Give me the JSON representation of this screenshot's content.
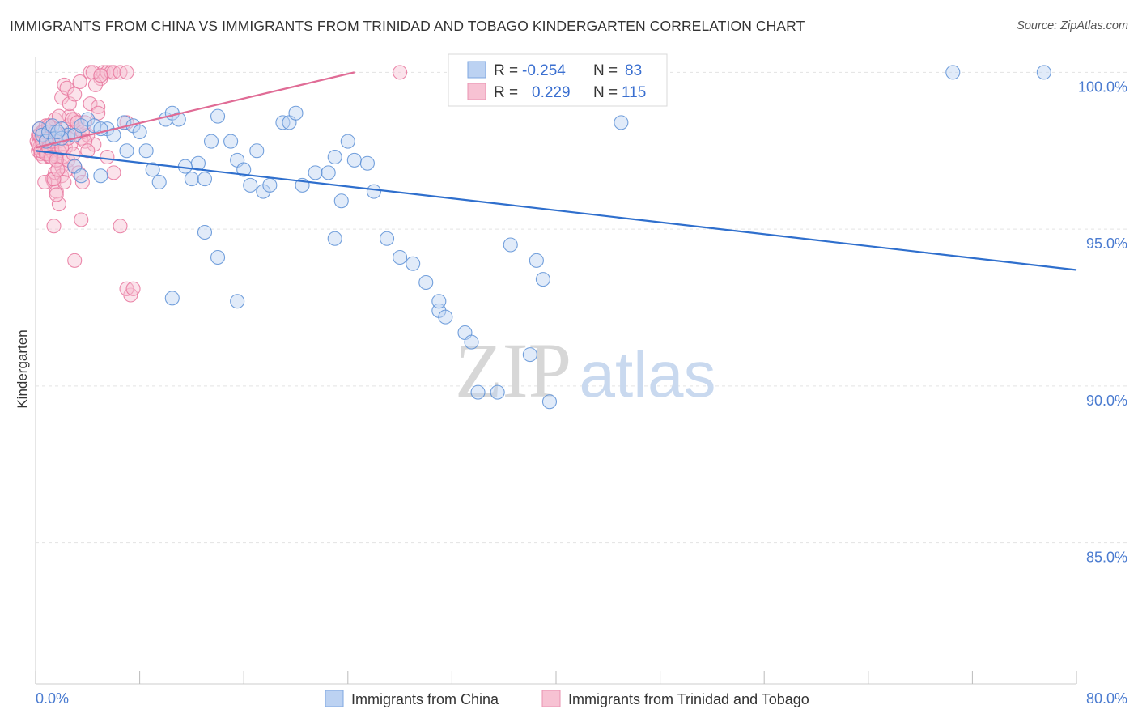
{
  "title": "IMMIGRANTS FROM CHINA VS IMMIGRANTS FROM TRINIDAD AND TOBAGO KINDERGARTEN CORRELATION CHART",
  "source": "Source: ZipAtlas.com",
  "watermark": {
    "left": "ZIP",
    "right": "atlas"
  },
  "legend_box": {
    "rows": [
      {
        "r_label": "R =",
        "r_value": "-0.254",
        "n_label": "N =",
        "n_value": "83",
        "color": "#a8c4ec"
      },
      {
        "r_label": "R =",
        "r_value": "0.229",
        "n_label": "N =",
        "n_value": "115",
        "color": "#f5b3c8"
      }
    ]
  },
  "bottom_legend": [
    {
      "label": "Immigrants from China",
      "color": "#a8c4ec"
    },
    {
      "label": "Immigrants from Trinidad and Tobago",
      "color": "#f5b3c8"
    }
  ],
  "colors": {
    "china": "#5b8fd6",
    "china_fill": "#bcd2f2",
    "tt": "#e8749c",
    "tt_fill": "#f7c2d3",
    "china_line": "#2f6fcd",
    "tt_line": "#e06c96",
    "tick": "#4a7bd0"
  },
  "chart_data": {
    "type": "scatter",
    "title": "IMMIGRANTS FROM CHINA VS IMMIGRANTS FROM TRINIDAD AND TOBAGO KINDERGARTEN CORRELATION CHART",
    "xlabel": "",
    "ylabel": "Kindergarten",
    "xlim": [
      0,
      80
    ],
    "ylim": [
      80.5,
      100.5
    ],
    "x_tick_labels": [
      "0.0%",
      "80.0%"
    ],
    "y_ticks": [
      85,
      90,
      95,
      100
    ],
    "y_tick_labels": [
      "85.0%",
      "90.0%",
      "95.0%",
      "100.0%"
    ],
    "grid": "horizontal dashed",
    "series": [
      {
        "name": "Immigrants from China",
        "R": -0.254,
        "N": 83,
        "trend": {
          "x": [
            0,
            80
          ],
          "y": [
            97.5,
            93.7
          ]
        },
        "x": [
          0.3,
          0.5,
          0.8,
          1.0,
          1.3,
          1.5,
          2.0,
          2.5,
          3.0,
          3.5,
          4.0,
          4.5,
          5.0,
          5.5,
          6.0,
          6.8,
          7.5,
          8.0,
          8.5,
          9.0,
          9.5,
          10.0,
          10.5,
          11.0,
          11.5,
          12.0,
          12.5,
          13.0,
          13.5,
          14.0,
          15.0,
          15.5,
          16.0,
          16.5,
          17.0,
          17.5,
          18.0,
          19.0,
          19.5,
          20.0,
          20.5,
          21.5,
          22.5,
          23.0,
          23.5,
          24.0,
          24.5,
          25.5,
          26.0,
          27.0,
          28.0,
          29.0,
          30.0,
          31.0,
          31.5,
          33.0,
          33.5,
          34.0,
          35.5,
          36.5,
          38.0,
          38.5,
          39.0,
          39.5,
          40.0,
          45.0,
          40.3,
          41.0,
          36.0,
          15.5,
          23.0,
          14.0,
          10.5,
          13.0,
          3.0,
          5.0,
          2.0,
          1.7,
          3.5,
          7.0,
          70.5,
          77.5,
          31.0
        ],
        "y": [
          98.2,
          98.0,
          97.8,
          98.1,
          98.3,
          97.9,
          98.2,
          98.0,
          97.0,
          96.7,
          98.5,
          98.3,
          96.7,
          98.2,
          98.0,
          98.4,
          98.3,
          98.1,
          97.5,
          96.9,
          96.5,
          98.5,
          98.7,
          98.5,
          97.0,
          96.6,
          97.1,
          96.6,
          97.8,
          98.6,
          97.8,
          97.2,
          96.9,
          96.4,
          97.5,
          96.2,
          96.4,
          98.4,
          98.4,
          98.7,
          96.4,
          96.8,
          96.8,
          97.3,
          95.9,
          97.8,
          97.2,
          97.1,
          96.2,
          94.7,
          94.1,
          93.9,
          93.3,
          92.4,
          92.2,
          91.7,
          91.4,
          89.8,
          89.8,
          94.5,
          91.0,
          94.0,
          93.4,
          89.5,
          100.0,
          98.4,
          100.0,
          100.0,
          100.0,
          92.7,
          94.7,
          94.1,
          92.8,
          94.9,
          98.0,
          98.2,
          97.9,
          98.1,
          98.3,
          97.5,
          100.0,
          100.0,
          92.7
        ]
      },
      {
        "name": "Immigrants from Trinidad and Tobago",
        "R": 0.229,
        "N": 115,
        "trend": {
          "x": [
            0,
            24.5
          ],
          "y": [
            97.6,
            100.0
          ]
        },
        "x": [
          0.1,
          0.2,
          0.2,
          0.3,
          0.3,
          0.4,
          0.4,
          0.5,
          0.5,
          0.6,
          0.6,
          0.7,
          0.7,
          0.8,
          0.8,
          0.9,
          0.9,
          1.0,
          1.0,
          1.1,
          1.1,
          1.2,
          1.2,
          1.3,
          1.3,
          1.4,
          1.4,
          1.5,
          1.5,
          1.6,
          1.6,
          1.7,
          1.8,
          1.8,
          1.9,
          2.0,
          2.0,
          2.1,
          2.2,
          2.2,
          2.3,
          2.4,
          2.5,
          2.5,
          2.6,
          2.7,
          2.8,
          2.9,
          3.0,
          3.0,
          3.2,
          3.3,
          3.5,
          3.6,
          3.8,
          4.0,
          4.2,
          4.5,
          4.8,
          5.0,
          5.2,
          5.5,
          5.8,
          6.0,
          6.5,
          7.0,
          7.0,
          7.3,
          0.2,
          0.3,
          0.4,
          0.5,
          0.6,
          0.7,
          0.8,
          0.9,
          1.0,
          1.1,
          1.2,
          1.3,
          1.4,
          1.5,
          1.6,
          1.7,
          1.8,
          2.0,
          2.2,
          2.4,
          2.6,
          2.8,
          3.0,
          3.2,
          3.4,
          3.6,
          3.8,
          4.0,
          4.2,
          4.4,
          4.6,
          4.8,
          5.0,
          5.5,
          6.0,
          6.5,
          7.0,
          7.5,
          1.0,
          1.5,
          2.0,
          2.5,
          3.0,
          3.5,
          1.4,
          1.6,
          28.0
        ],
        "y": [
          97.8,
          97.5,
          98.0,
          97.6,
          98.2,
          97.4,
          97.9,
          97.6,
          98.1,
          97.3,
          97.8,
          97.5,
          98.0,
          97.7,
          98.3,
          97.4,
          97.9,
          97.6,
          98.2,
          97.3,
          97.8,
          97.5,
          98.0,
          97.7,
          96.6,
          97.4,
          96.5,
          97.6,
          96.8,
          97.3,
          96.2,
          97.8,
          97.5,
          95.8,
          97.9,
          97.0,
          96.7,
          97.3,
          98.0,
          96.5,
          97.6,
          96.9,
          98.3,
          97.2,
          98.6,
          97.7,
          98.1,
          97.4,
          98.5,
          97.0,
          98.2,
          96.8,
          97.9,
          96.5,
          98.4,
          98.0,
          99.0,
          97.7,
          98.9,
          99.8,
          100.0,
          100.0,
          100.0,
          100.0,
          100.0,
          98.4,
          100.0,
          92.9,
          97.7,
          98.0,
          97.5,
          97.8,
          98.1,
          96.5,
          97.4,
          97.9,
          97.6,
          98.3,
          97.3,
          97.8,
          96.6,
          98.5,
          97.2,
          96.9,
          98.6,
          99.2,
          99.6,
          99.5,
          99.0,
          98.5,
          99.3,
          98.4,
          99.7,
          98.1,
          97.8,
          97.5,
          100.0,
          100.0,
          99.6,
          98.7,
          99.9,
          97.3,
          96.8,
          95.1,
          93.1,
          93.1,
          98.3,
          98.1,
          97.6,
          97.9,
          94.0,
          95.3,
          95.1,
          96.1,
          100.0
        ]
      }
    ]
  }
}
